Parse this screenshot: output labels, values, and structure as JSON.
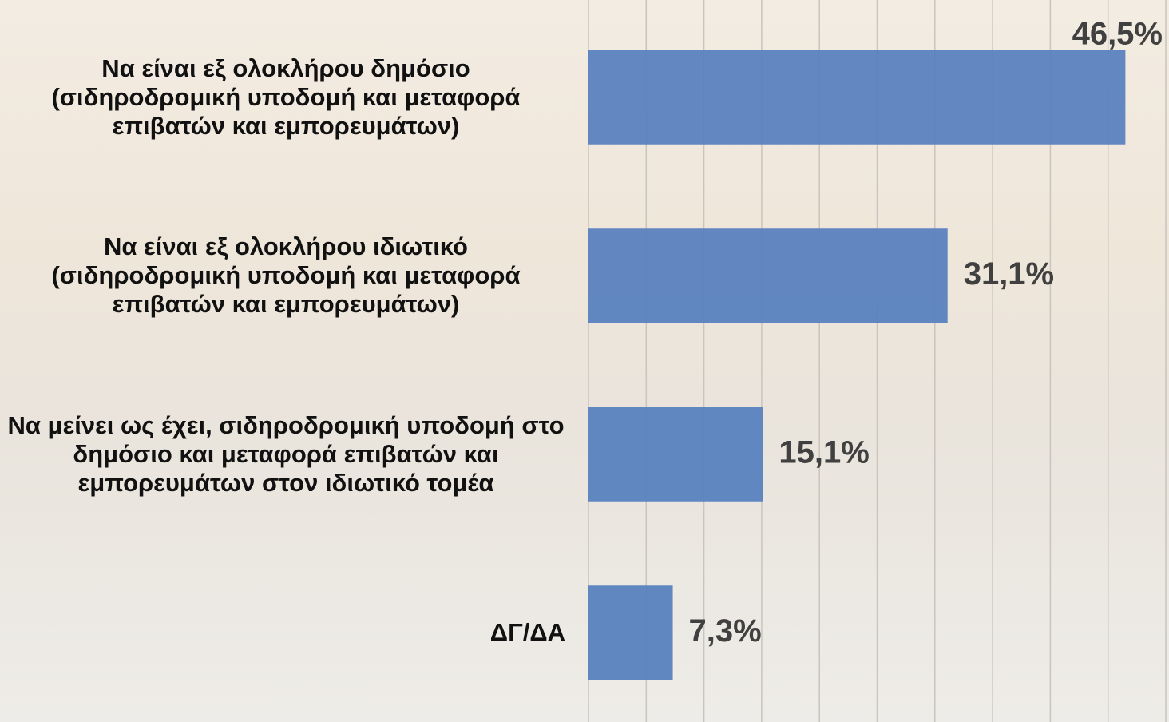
{
  "chart_data": {
    "type": "bar",
    "orientation": "horizontal",
    "categories": [
      "Να είναι εξ ολοκλήρου δημόσιο (σιδηροδρομική υποδομή και μεταφορά επιβατών και εμπορευμάτων)",
      "Να είναι εξ ολοκλήρου ιδιωτικό (σιδηροδρομική υποδομή και μεταφορά επιβατών και εμπορευμάτων)",
      "Να μείνει ως έχει, σιδηροδρομική υποδομή στο δημόσιο και μεταφορά επιβατών και εμπορευμάτων στον ιδιωτικό τομέα",
      "ΔΓ/ΔΑ"
    ],
    "values": [
      46.5,
      31.1,
      15.1,
      7.3
    ],
    "value_labels": [
      "46,5%",
      "31,1%",
      "15,1%",
      "7,3%"
    ],
    "color": "#5a82bf",
    "xlim": [
      0,
      50
    ],
    "xticks": [
      0,
      5,
      10,
      15,
      20,
      25,
      30,
      35,
      40,
      45,
      50
    ],
    "grid": true
  }
}
